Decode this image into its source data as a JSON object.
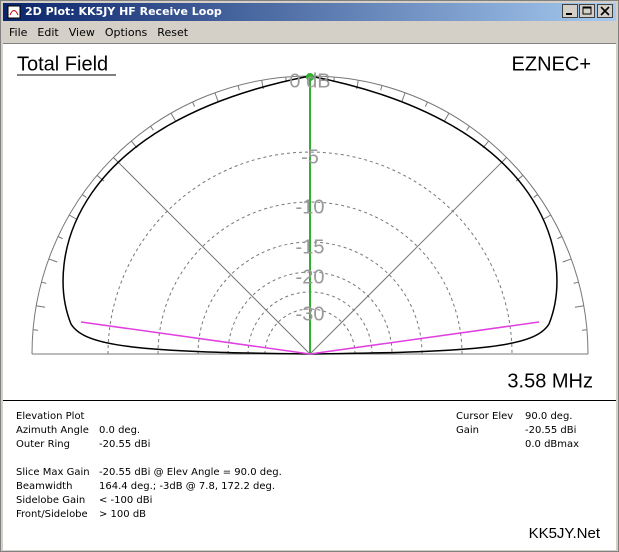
{
  "window": {
    "title": "2D Plot: KK5JY HF Receive Loop"
  },
  "menu": [
    "File",
    "Edit",
    "View",
    "Options",
    "Reset"
  ],
  "plot": {
    "title": "Total Field",
    "brand": "EZNEC+",
    "frequency": "3.58 MHz",
    "ring_labels": [
      "0 dB",
      "-5",
      "-10",
      "-15",
      "-20",
      "-30"
    ]
  },
  "info": {
    "left": [
      {
        "label": "Elevation Plot"
      },
      {
        "label": "Azimuth Angle",
        "value": "0.0 deg."
      },
      {
        "label": "Outer Ring",
        "value": "-20.55 dBi"
      },
      {
        "label": "Slice Max Gain",
        "value": "-20.55 dBi @ Elev Angle = 90.0 deg."
      },
      {
        "label": "Beamwidth",
        "value": "164.4 deg.; -3dB @ 7.8, 172.2 deg."
      },
      {
        "label": "Sidelobe Gain",
        "value": "< -100 dBi"
      },
      {
        "label": "Front/Sidelobe",
        "value": "> 100 dB"
      }
    ],
    "right": [
      {
        "label": "Cursor Elev",
        "value": "90.0 deg."
      },
      {
        "label": "Gain",
        "value": "-20.55 dBi"
      },
      {
        "value": "0.0 dBmax"
      }
    ],
    "footer": "KK5JY.Net"
  }
}
